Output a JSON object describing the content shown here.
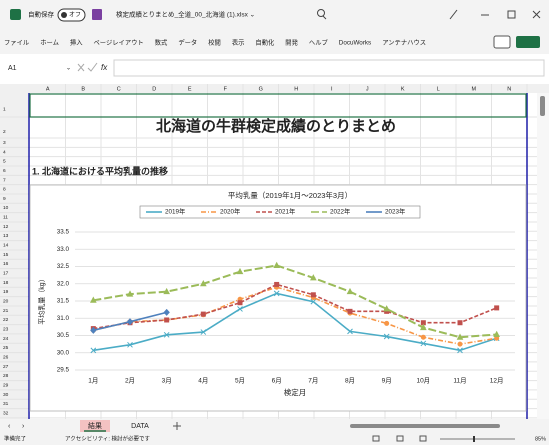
{
  "window": {
    "autosave": "自動保存",
    "toggle": "オフ",
    "filename": "検定成績とりまとめ_全道_00_北海道 (1).xlsx ⌄"
  },
  "ribbon": {
    "tabs": [
      "ファイル",
      "ホーム",
      "挿入",
      "ページレイアウト",
      "数式",
      "データ",
      "校閲",
      "表示",
      "自動化",
      "開発",
      "ヘルプ",
      "DocuWorks",
      "アンテナハウス"
    ]
  },
  "formula_bar": {
    "name_box": "A1",
    "fx": "fx"
  },
  "sheet": {
    "columns": [
      "A",
      "B",
      "C",
      "D",
      "E",
      "F",
      "G",
      "H",
      "I",
      "J",
      "K",
      "L",
      "M",
      "N"
    ],
    "rows": [
      1,
      2,
      3,
      4,
      5,
      6,
      7,
      8,
      9,
      10,
      11,
      12,
      13,
      14,
      15,
      16,
      17,
      18,
      19,
      20,
      21,
      22,
      23,
      24,
      25,
      26,
      27,
      28,
      29,
      30,
      31,
      32
    ],
    "title": "北海道の牛群検定成績のとりまとめ",
    "section": "1.  北海道における平均乳量の推移"
  },
  "chart_data": {
    "type": "line",
    "title": "平均乳量（2019年1月～2023年3月）",
    "x_label": "検定月",
    "y_label": "平均乳量（kg）",
    "categories": [
      "1月",
      "2月",
      "3月",
      "4月",
      "5月",
      "6月",
      "7月",
      "8月",
      "9月",
      "10月",
      "11月",
      "12月"
    ],
    "ylim": [
      29.5,
      33.5
    ],
    "yticks": [
      29.5,
      {
        "value": 30,
        "label": "30.0"
      },
      30.5,
      {
        "value": 31,
        "label": "31.0"
      },
      31.5,
      {
        "value": 32,
        "label": "32.0"
      },
      32.5,
      {
        "value": 33,
        "label": "33.0"
      },
      33.5
    ],
    "grid": true,
    "legend": "top",
    "series": [
      {
        "name": "2019年",
        "color": "#4bacc6",
        "line_style": "solid",
        "marker": "x",
        "values": [
          30.07,
          30.23,
          30.52,
          30.6,
          31.27,
          31.72,
          31.48,
          30.62,
          30.47,
          30.27,
          30.07,
          30.42
        ]
      },
      {
        "name": "2020年",
        "color": "#f79646",
        "line_style": "dashdot",
        "marker": "circle",
        "values": [
          30.65,
          30.9,
          30.95,
          31.1,
          31.55,
          31.9,
          31.6,
          31.15,
          30.85,
          30.45,
          30.25,
          30.42
        ]
      },
      {
        "name": "2021年",
        "color": "#c0504d",
        "line_style": "dashed",
        "marker": "square",
        "values": [
          30.7,
          30.87,
          30.95,
          31.12,
          31.45,
          31.98,
          31.68,
          31.2,
          31.2,
          30.87,
          30.87,
          31.3
        ]
      },
      {
        "name": "2022年",
        "color": "#9bbb59",
        "line_style": "longdash",
        "marker": "triangle",
        "values": [
          31.52,
          31.7,
          31.77,
          32.0,
          32.35,
          32.53,
          32.17,
          31.77,
          31.27,
          30.73,
          30.45,
          30.53
        ]
      },
      {
        "name": "2023年",
        "color": "#4f81bd",
        "line_style": "solid",
        "marker": "diamond",
        "values": [
          30.65,
          30.9,
          31.17,
          null,
          null,
          null,
          null,
          null,
          null,
          null,
          null,
          null
        ]
      }
    ]
  },
  "sheet_tabs": [
    "結果",
    "DATA"
  ],
  "status": {
    "ready": "準備完了",
    "accessibility": "アクセシビリティ: 検討が必要です",
    "zoom": "85%"
  }
}
